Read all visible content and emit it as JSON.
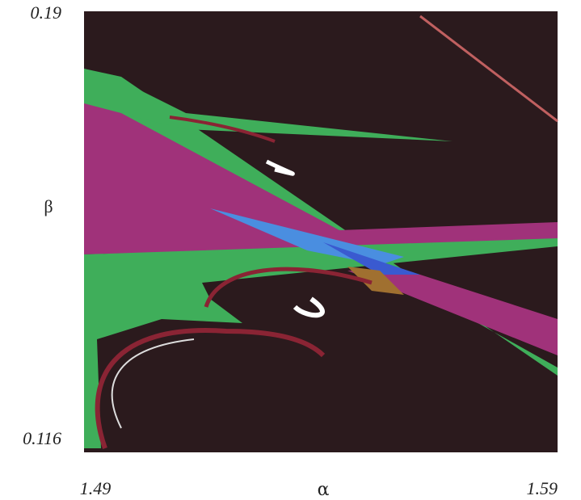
{
  "chart_data": {
    "type": "image",
    "xlabel": "α",
    "ylabel": "β",
    "xlim": [
      1.49,
      1.59
    ],
    "ylim": [
      0.116,
      0.19
    ],
    "xticks": [
      1.49,
      1.59
    ],
    "yticks": [
      0.116,
      0.19
    ]
  }
}
